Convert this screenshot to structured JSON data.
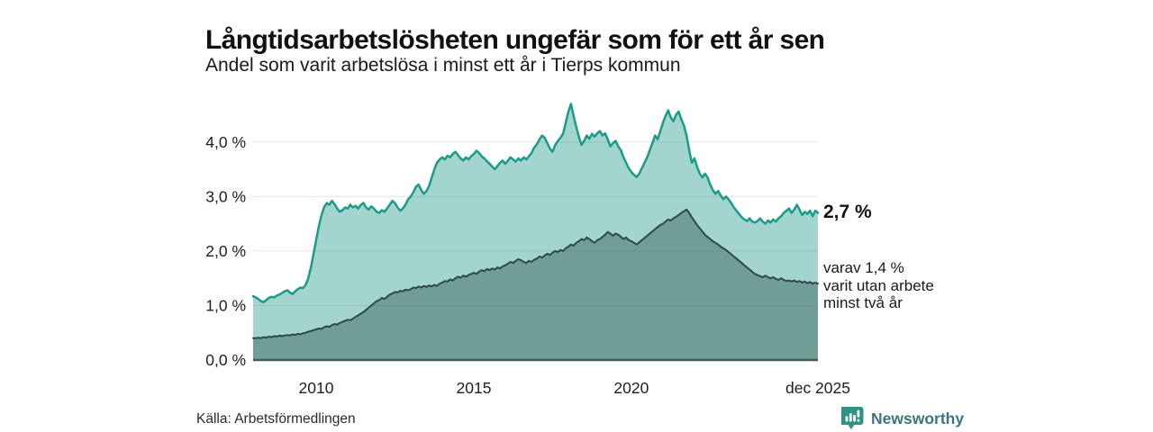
{
  "header": {
    "title": "Långtidsarbetslösheten ungefär som för ett år sen",
    "subtitle": "Andel som varit arbetslösa i minst ett år i Tierps kommun"
  },
  "annotations": {
    "latest_total": "2,7 %",
    "latest_sub": "varav 1,4 %\nvarit utan arbete\nminst två år"
  },
  "footer": {
    "source": "Källa: Arbetsförmedlingen",
    "brand": "Newsworthy"
  },
  "colors": {
    "total_stroke": "#1b9c8a",
    "total_fill": "#a3d4cd",
    "twoyear_stroke": "#2d4a46",
    "twoyear_fill": "#709d96",
    "gridline": "rgba(80,80,80,0.14)",
    "baseline": "#475a57",
    "tick_text": "#202020",
    "brand_teal": "#2f9287",
    "brand_text": "#3b7580"
  },
  "chart_data": {
    "type": "area",
    "title": "Långtidsarbetslösheten ungefär som för ett år sen",
    "subtitle": "Andel som varit arbetslösa i minst ett år i Tierps kommun",
    "unit": "%",
    "x_start_year": 2008,
    "x_end_year": 2025.917,
    "points_per_year": 12,
    "ylim": [
      0,
      4.79
    ],
    "grid": true,
    "y_ticks": [
      {
        "v": 0,
        "label": "0,0 %"
      },
      {
        "v": 1,
        "label": "1,0 %"
      },
      {
        "v": 2,
        "label": "2,0 %"
      },
      {
        "v": 3,
        "label": "3,0 %"
      },
      {
        "v": 4,
        "label": "4,0 %"
      }
    ],
    "x_ticks": [
      {
        "t": 2010,
        "label": "2010"
      },
      {
        "t": 2015,
        "label": "2015"
      },
      {
        "t": 2020,
        "label": "2020"
      },
      {
        "t": 2025.917,
        "label": "dec 2025"
      }
    ],
    "series": [
      {
        "name": "Andel arbetslösa minst ett år",
        "end_value": "2,7 %",
        "stroke": "#1b9c8a",
        "fill": "#a3d4cd",
        "stroke_width": 2.5,
        "values": [
          1.17,
          1.15,
          1.12,
          1.08,
          1.06,
          1.1,
          1.14,
          1.16,
          1.15,
          1.18,
          1.2,
          1.23,
          1.26,
          1.28,
          1.24,
          1.21,
          1.26,
          1.3,
          1.33,
          1.32,
          1.38,
          1.5,
          1.7,
          1.95,
          2.2,
          2.45,
          2.65,
          2.8,
          2.88,
          2.85,
          2.92,
          2.86,
          2.78,
          2.72,
          2.75,
          2.8,
          2.78,
          2.85,
          2.8,
          2.83,
          2.78,
          2.85,
          2.88,
          2.8,
          2.76,
          2.82,
          2.78,
          2.72,
          2.7,
          2.75,
          2.72,
          2.78,
          2.85,
          2.92,
          2.88,
          2.8,
          2.74,
          2.78,
          2.85,
          2.95,
          3.0,
          3.08,
          3.18,
          3.22,
          3.12,
          3.05,
          3.1,
          3.2,
          3.35,
          3.5,
          3.62,
          3.68,
          3.72,
          3.68,
          3.75,
          3.72,
          3.78,
          3.82,
          3.76,
          3.7,
          3.66,
          3.72,
          3.68,
          3.74,
          3.78,
          3.84,
          3.8,
          3.74,
          3.7,
          3.65,
          3.6,
          3.55,
          3.5,
          3.56,
          3.62,
          3.66,
          3.6,
          3.66,
          3.72,
          3.68,
          3.64,
          3.7,
          3.66,
          3.72,
          3.68,
          3.74,
          3.8,
          3.9,
          3.96,
          4.05,
          4.12,
          4.08,
          3.98,
          3.88,
          3.82,
          3.95,
          4.02,
          4.08,
          4.15,
          4.35,
          4.55,
          4.7,
          4.48,
          4.28,
          4.1,
          3.95,
          4.02,
          4.12,
          4.06,
          4.15,
          4.1,
          4.16,
          4.2,
          4.12,
          4.16,
          4.05,
          3.92,
          3.98,
          4.02,
          3.92,
          3.85,
          3.72,
          3.62,
          3.52,
          3.45,
          3.4,
          3.36,
          3.42,
          3.52,
          3.62,
          3.72,
          3.85,
          3.98,
          4.12,
          4.05,
          4.2,
          4.35,
          4.48,
          4.58,
          4.45,
          4.38,
          4.5,
          4.56,
          4.42,
          4.3,
          4.12,
          3.85,
          3.62,
          3.7,
          3.55,
          3.42,
          3.35,
          3.42,
          3.35,
          3.22,
          3.12,
          3.05,
          3.1,
          3.02,
          2.95,
          3.0,
          2.95,
          2.88,
          2.8,
          2.74,
          2.68,
          2.62,
          2.58,
          2.55,
          2.6,
          2.54,
          2.52,
          2.55,
          2.6,
          2.54,
          2.5,
          2.56,
          2.52,
          2.58,
          2.54,
          2.6,
          2.64,
          2.7,
          2.74,
          2.78,
          2.7,
          2.76,
          2.85,
          2.76,
          2.66,
          2.72,
          2.68,
          2.74,
          2.64,
          2.74,
          2.7
        ]
      },
      {
        "name": "varav arbetslösa minst två år",
        "end_value": "1,4 %",
        "stroke": "#2d4a46",
        "fill": "#709d96",
        "stroke_width": 2,
        "values": [
          0.4,
          0.4,
          0.41,
          0.4,
          0.42,
          0.41,
          0.43,
          0.42,
          0.44,
          0.43,
          0.45,
          0.44,
          0.45,
          0.46,
          0.45,
          0.47,
          0.46,
          0.48,
          0.47,
          0.49,
          0.5,
          0.52,
          0.53,
          0.55,
          0.56,
          0.58,
          0.57,
          0.6,
          0.62,
          0.61,
          0.64,
          0.66,
          0.65,
          0.68,
          0.7,
          0.72,
          0.74,
          0.73,
          0.76,
          0.79,
          0.82,
          0.85,
          0.88,
          0.92,
          0.96,
          1.0,
          1.04,
          1.08,
          1.1,
          1.14,
          1.12,
          1.16,
          1.2,
          1.22,
          1.25,
          1.24,
          1.27,
          1.26,
          1.29,
          1.28,
          1.3,
          1.33,
          1.32,
          1.35,
          1.33,
          1.36,
          1.34,
          1.37,
          1.35,
          1.38,
          1.36,
          1.4,
          1.42,
          1.45,
          1.44,
          1.48,
          1.46,
          1.5,
          1.53,
          1.51,
          1.55,
          1.53,
          1.56,
          1.58,
          1.6,
          1.58,
          1.62,
          1.65,
          1.63,
          1.67,
          1.65,
          1.68,
          1.66,
          1.7,
          1.68,
          1.72,
          1.74,
          1.77,
          1.8,
          1.78,
          1.82,
          1.85,
          1.83,
          1.8,
          1.78,
          1.82,
          1.8,
          1.84,
          1.86,
          1.9,
          1.88,
          1.92,
          1.95,
          1.93,
          1.97,
          2.0,
          1.98,
          2.02,
          2.0,
          2.05,
          2.08,
          2.12,
          2.1,
          2.15,
          2.18,
          2.22,
          2.2,
          2.25,
          2.22,
          2.18,
          2.15,
          2.2,
          2.22,
          2.26,
          2.3,
          2.35,
          2.32,
          2.28,
          2.32,
          2.3,
          2.26,
          2.22,
          2.25,
          2.2,
          2.18,
          2.15,
          2.12,
          2.16,
          2.2,
          2.24,
          2.28,
          2.32,
          2.36,
          2.4,
          2.44,
          2.48,
          2.5,
          2.54,
          2.58,
          2.56,
          2.6,
          2.63,
          2.66,
          2.7,
          2.73,
          2.76,
          2.7,
          2.62,
          2.55,
          2.48,
          2.42,
          2.36,
          2.3,
          2.26,
          2.22,
          2.18,
          2.15,
          2.12,
          2.08,
          2.05,
          2.02,
          1.98,
          1.94,
          1.9,
          1.86,
          1.82,
          1.78,
          1.74,
          1.7,
          1.66,
          1.62,
          1.58,
          1.56,
          1.54,
          1.52,
          1.55,
          1.52,
          1.5,
          1.52,
          1.49,
          1.47,
          1.5,
          1.47,
          1.45,
          1.46,
          1.44,
          1.46,
          1.43,
          1.45,
          1.42,
          1.44,
          1.41,
          1.43,
          1.4,
          1.42,
          1.4
        ]
      }
    ],
    "legend_position": "right-annotations"
  }
}
